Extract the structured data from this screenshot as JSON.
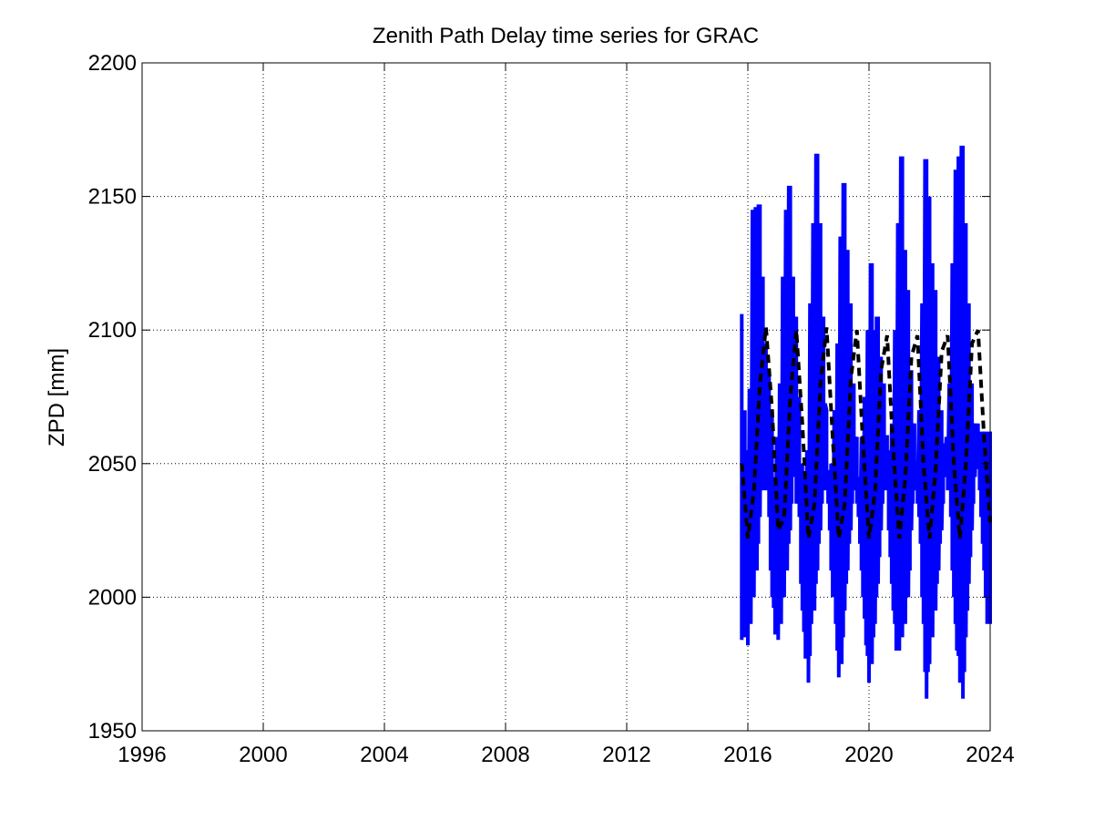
{
  "chart_data": {
    "type": "line",
    "title": "Zenith Path Delay time series for GRAC",
    "xlabel": "",
    "ylabel": "ZPD [mm]",
    "xlim": [
      1996,
      2024
    ],
    "ylim": [
      1950,
      2200
    ],
    "x_ticks": [
      1996,
      2000,
      2004,
      2008,
      2012,
      2016,
      2020,
      2024
    ],
    "x_tick_labels": [
      "1996",
      "2000",
      "2004",
      "2008",
      "2012",
      "2016",
      "2020",
      "2024"
    ],
    "y_ticks": [
      1950,
      2000,
      2050,
      2100,
      2150,
      2200
    ],
    "y_tick_labels": [
      "1950",
      "2000",
      "2050",
      "2100",
      "2150",
      "2200"
    ],
    "grid": true,
    "legend": "none",
    "series": [
      {
        "style": "solid",
        "color": "#0000ff",
        "description_range": "daily ZPD values, roughly 1960 to 2169 mm",
        "x": [
          2015.8,
          2015.9,
          2016.0,
          2016.1,
          2016.2,
          2016.3,
          2016.4,
          2016.5,
          2016.6,
          2016.7,
          2016.8,
          2016.9,
          2017.0,
          2017.1,
          2017.2,
          2017.3,
          2017.4,
          2017.5,
          2017.6,
          2017.7,
          2017.8,
          2017.9,
          2018.0,
          2018.1,
          2018.2,
          2018.3,
          2018.4,
          2018.5,
          2018.6,
          2018.7,
          2018.8,
          2018.9,
          2019.0,
          2019.1,
          2019.2,
          2019.3,
          2019.4,
          2019.5,
          2019.6,
          2019.7,
          2019.8,
          2019.9,
          2020.0,
          2020.1,
          2020.2,
          2020.3,
          2020.4,
          2020.5,
          2020.6,
          2020.7,
          2020.8,
          2020.9,
          2021.0,
          2021.1,
          2021.2,
          2021.3,
          2021.4,
          2021.5,
          2021.6,
          2021.7,
          2021.8,
          2021.9,
          2022.0,
          2022.1,
          2022.2,
          2022.3,
          2022.4,
          2022.5,
          2022.6,
          2022.7,
          2022.8,
          2022.9,
          2023.0,
          2023.1,
          2023.2,
          2023.3,
          2023.4,
          2023.5,
          2023.6,
          2023.7,
          2023.8,
          2023.9,
          2024.0
        ],
        "min": [
          1984,
          1985,
          1982,
          1990,
          2000,
          2010,
          2030,
          2040,
          2040,
          2030,
          2000,
          1986,
          1984,
          1990,
          2000,
          2010,
          2025,
          2045,
          2035,
          2030,
          1995,
          1977,
          1968,
          1990,
          1995,
          2010,
          2025,
          2040,
          2040,
          2025,
          2000,
          1990,
          1970,
          1975,
          1995,
          2010,
          2025,
          2040,
          2035,
          2020,
          2000,
          1982,
          1968,
          1975,
          1990,
          2005,
          2025,
          2040,
          2040,
          2015,
          1995,
          1980,
          1980,
          1985,
          1990,
          2000,
          2025,
          2040,
          2035,
          2020,
          1990,
          1962,
          1975,
          1985,
          1995,
          2010,
          2025,
          2045,
          2040,
          2030,
          2000,
          1980,
          1968,
          1962,
          1985,
          2005,
          2025,
          2045,
          2048,
          2030,
          2010,
          1990,
          1990
        ],
        "max": [
          2106,
          2070,
          2055,
          2078,
          2145,
          2146,
          2147,
          2120,
          2095,
          2085,
          2070,
          2045,
          2060,
          2080,
          2120,
          2145,
          2154,
          2120,
          2105,
          2075,
          2050,
          2045,
          2055,
          2110,
          2140,
          2166,
          2140,
          2105,
          2070,
          2045,
          2050,
          2070,
          2095,
          2135,
          2155,
          2130,
          2110,
          2080,
          2060,
          2045,
          2060,
          2075,
          2100,
          2125,
          2100,
          2105,
          2090,
          2080,
          2060,
          2055,
          2065,
          2100,
          2140,
          2165,
          2130,
          2115,
          2085,
          2065,
          2050,
          2070,
          2110,
          2164,
          2150,
          2125,
          2115,
          2090,
          2070,
          2055,
          2060,
          2080,
          2125,
          2160,
          2165,
          2169,
          2140,
          2110,
          2080,
          2065,
          2065,
          2062,
          2062,
          2062,
          2062
        ]
      },
      {
        "style": "dashed",
        "color": "#000000",
        "description_range": "seasonal model fit, about 2022 to 2101 mm",
        "x": [
          2015.8,
          2016.0,
          2016.2,
          2016.4,
          2016.6,
          2016.8,
          2017.0,
          2017.2,
          2017.4,
          2017.6,
          2017.8,
          2018.0,
          2018.2,
          2018.4,
          2018.6,
          2018.8,
          2019.0,
          2019.2,
          2019.4,
          2019.6,
          2019.8,
          2020.0,
          2020.2,
          2020.4,
          2020.6,
          2020.8,
          2021.0,
          2021.2,
          2021.4,
          2021.6,
          2021.8,
          2022.0,
          2022.2,
          2022.4,
          2022.6,
          2022.8,
          2023.0,
          2023.2,
          2023.4,
          2023.6,
          2023.8,
          2024.0
        ],
        "y": [
          2050,
          2022,
          2040,
          2080,
          2101,
          2070,
          2025,
          2030,
          2075,
          2100,
          2065,
          2022,
          2035,
          2080,
          2101,
          2060,
          2022,
          2035,
          2082,
          2100,
          2058,
          2022,
          2040,
          2085,
          2098,
          2055,
          2022,
          2045,
          2090,
          2098,
          2050,
          2022,
          2048,
          2092,
          2098,
          2050,
          2022,
          2050,
          2095,
          2100,
          2060,
          2028
        ]
      }
    ]
  }
}
